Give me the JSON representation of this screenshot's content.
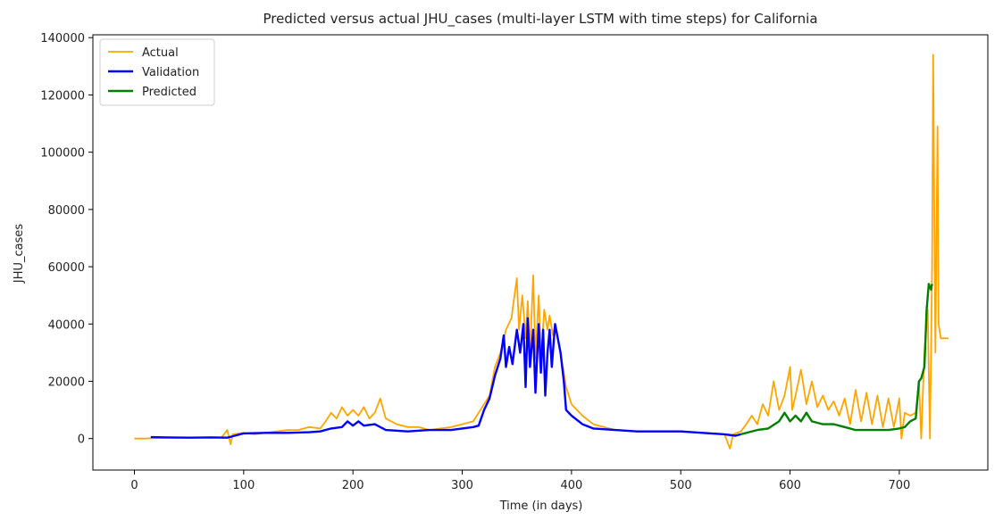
{
  "chart_data": {
    "type": "line",
    "title": "Predicted versus actual JHU_cases (multi-layer LSTM with time steps) for California",
    "xlabel": "Time (in days)",
    "ylabel": "JHU_cases",
    "xlim": [
      -38,
      781
    ],
    "ylim": [
      -11000,
      141000
    ],
    "xticks": [
      0,
      100,
      200,
      300,
      400,
      500,
      600,
      700
    ],
    "yticks": [
      0,
      20000,
      40000,
      60000,
      80000,
      100000,
      120000,
      140000
    ],
    "legend_position": "top-left",
    "grid": false,
    "series": [
      {
        "name": "Actual",
        "color": "#ffa500",
        "points": [
          [
            0,
            0
          ],
          [
            10,
            0
          ],
          [
            20,
            200
          ],
          [
            40,
            300
          ],
          [
            60,
            400
          ],
          [
            80,
            500
          ],
          [
            85,
            3000
          ],
          [
            88,
            -2000
          ],
          [
            90,
            1500
          ],
          [
            100,
            2000
          ],
          [
            110,
            1500
          ],
          [
            120,
            2000
          ],
          [
            130,
            2500
          ],
          [
            140,
            3000
          ],
          [
            150,
            3000
          ],
          [
            160,
            4000
          ],
          [
            170,
            3500
          ],
          [
            175,
            6000
          ],
          [
            180,
            9000
          ],
          [
            185,
            7000
          ],
          [
            190,
            11000
          ],
          [
            195,
            8000
          ],
          [
            200,
            10000
          ],
          [
            205,
            8000
          ],
          [
            210,
            11000
          ],
          [
            215,
            7000
          ],
          [
            220,
            9000
          ],
          [
            225,
            14000
          ],
          [
            230,
            7000
          ],
          [
            240,
            5000
          ],
          [
            250,
            4000
          ],
          [
            260,
            4000
          ],
          [
            270,
            3000
          ],
          [
            280,
            3500
          ],
          [
            290,
            4000
          ],
          [
            300,
            5000
          ],
          [
            310,
            6000
          ],
          [
            320,
            12000
          ],
          [
            325,
            15000
          ],
          [
            330,
            25000
          ],
          [
            335,
            30000
          ],
          [
            340,
            38000
          ],
          [
            345,
            42000
          ],
          [
            350,
            56000
          ],
          [
            352,
            38000
          ],
          [
            355,
            50000
          ],
          [
            358,
            35000
          ],
          [
            360,
            48000
          ],
          [
            362,
            30000
          ],
          [
            365,
            57000
          ],
          [
            367,
            28000
          ],
          [
            370,
            50000
          ],
          [
            372,
            27000
          ],
          [
            375,
            45000
          ],
          [
            378,
            38000
          ],
          [
            380,
            43000
          ],
          [
            383,
            36000
          ],
          [
            385,
            40000
          ],
          [
            390,
            30000
          ],
          [
            395,
            18000
          ],
          [
            400,
            12000
          ],
          [
            410,
            8000
          ],
          [
            420,
            5000
          ],
          [
            440,
            3000
          ],
          [
            460,
            2500
          ],
          [
            480,
            2500
          ],
          [
            500,
            2500
          ],
          [
            520,
            2000
          ],
          [
            540,
            1500
          ],
          [
            545,
            -3500
          ],
          [
            548,
            1500
          ],
          [
            555,
            2500
          ],
          [
            560,
            5000
          ],
          [
            565,
            8000
          ],
          [
            570,
            5000
          ],
          [
            575,
            12000
          ],
          [
            580,
            8000
          ],
          [
            585,
            20000
          ],
          [
            590,
            10000
          ],
          [
            595,
            15000
          ],
          [
            600,
            25000
          ],
          [
            602,
            10000
          ],
          [
            605,
            15000
          ],
          [
            610,
            24000
          ],
          [
            615,
            12000
          ],
          [
            620,
            20000
          ],
          [
            625,
            11000
          ],
          [
            630,
            15000
          ],
          [
            635,
            10000
          ],
          [
            640,
            13000
          ],
          [
            645,
            8000
          ],
          [
            650,
            14000
          ],
          [
            655,
            5000
          ],
          [
            660,
            17000
          ],
          [
            665,
            6000
          ],
          [
            670,
            16000
          ],
          [
            675,
            5000
          ],
          [
            680,
            15000
          ],
          [
            685,
            4000
          ],
          [
            690,
            14000
          ],
          [
            695,
            4000
          ],
          [
            700,
            14000
          ],
          [
            702,
            0
          ],
          [
            705,
            9000
          ],
          [
            710,
            8000
          ],
          [
            715,
            9000
          ],
          [
            718,
            20000
          ],
          [
            720,
            0
          ],
          [
            723,
            30000
          ],
          [
            726,
            45000
          ],
          [
            728,
            0
          ],
          [
            730,
            60000
          ],
          [
            731,
            134000
          ],
          [
            732,
            80000
          ],
          [
            733,
            30000
          ],
          [
            735,
            109000
          ],
          [
            736,
            40000
          ],
          [
            738,
            35000
          ],
          [
            745,
            35000
          ]
        ]
      },
      {
        "name": "Validation",
        "color": "#0000ff",
        "points": [
          [
            15,
            500
          ],
          [
            30,
            400
          ],
          [
            50,
            300
          ],
          [
            70,
            400
          ],
          [
            85,
            300
          ],
          [
            90,
            800
          ],
          [
            100,
            1800
          ],
          [
            120,
            2000
          ],
          [
            140,
            2000
          ],
          [
            160,
            2200
          ],
          [
            170,
            2500
          ],
          [
            180,
            3500
          ],
          [
            190,
            4000
          ],
          [
            195,
            6000
          ],
          [
            200,
            4500
          ],
          [
            205,
            6000
          ],
          [
            210,
            4500
          ],
          [
            220,
            5000
          ],
          [
            230,
            3000
          ],
          [
            250,
            2500
          ],
          [
            270,
            3000
          ],
          [
            290,
            3000
          ],
          [
            300,
            3500
          ],
          [
            310,
            4000
          ],
          [
            315,
            4500
          ],
          [
            320,
            10000
          ],
          [
            325,
            14000
          ],
          [
            330,
            22000
          ],
          [
            335,
            28000
          ],
          [
            338,
            36000
          ],
          [
            340,
            25000
          ],
          [
            343,
            32000
          ],
          [
            346,
            26000
          ],
          [
            350,
            38000
          ],
          [
            353,
            30000
          ],
          [
            356,
            40000
          ],
          [
            358,
            18000
          ],
          [
            360,
            42000
          ],
          [
            362,
            25000
          ],
          [
            365,
            38000
          ],
          [
            367,
            16000
          ],
          [
            370,
            40000
          ],
          [
            372,
            23000
          ],
          [
            374,
            38000
          ],
          [
            376,
            15000
          ],
          [
            378,
            30000
          ],
          [
            380,
            38000
          ],
          [
            382,
            25000
          ],
          [
            385,
            40000
          ],
          [
            390,
            30000
          ],
          [
            393,
            20000
          ],
          [
            395,
            10000
          ],
          [
            400,
            8000
          ],
          [
            410,
            5000
          ],
          [
            420,
            3500
          ],
          [
            440,
            3000
          ],
          [
            460,
            2500
          ],
          [
            480,
            2500
          ],
          [
            500,
            2500
          ],
          [
            520,
            2000
          ],
          [
            540,
            1500
          ],
          [
            550,
            1000
          ],
          [
            555,
            1500
          ]
        ]
      },
      {
        "name": "Predicted",
        "color": "#008000",
        "points": [
          [
            555,
            1500
          ],
          [
            570,
            3000
          ],
          [
            580,
            3500
          ],
          [
            590,
            6000
          ],
          [
            595,
            9000
          ],
          [
            600,
            6000
          ],
          [
            605,
            8000
          ],
          [
            610,
            6000
          ],
          [
            615,
            9000
          ],
          [
            620,
            6000
          ],
          [
            630,
            5000
          ],
          [
            640,
            5000
          ],
          [
            650,
            4000
          ],
          [
            660,
            3000
          ],
          [
            670,
            3000
          ],
          [
            680,
            3000
          ],
          [
            690,
            3000
          ],
          [
            700,
            3500
          ],
          [
            705,
            4000
          ],
          [
            710,
            6000
          ],
          [
            715,
            7000
          ],
          [
            718,
            20000
          ],
          [
            720,
            21000
          ],
          [
            723,
            25000
          ],
          [
            725,
            45000
          ],
          [
            727,
            54000
          ],
          [
            729,
            52000
          ],
          [
            730,
            54000
          ]
        ]
      }
    ]
  }
}
